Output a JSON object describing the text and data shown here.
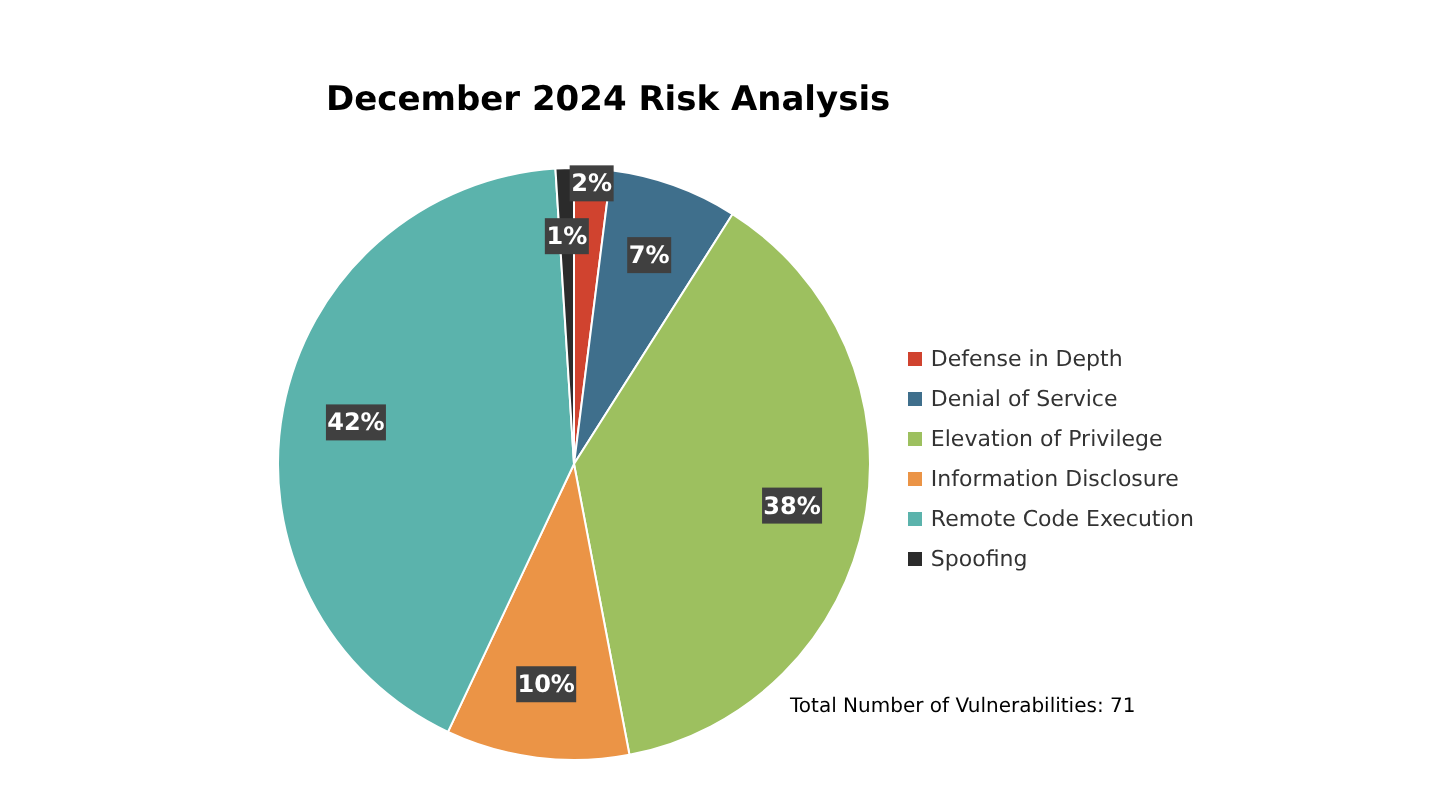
{
  "chart_data": {
    "type": "pie",
    "title": "December 2024 Risk Analysis",
    "categories": [
      "Defense in Depth",
      "Denial of Service",
      "Elevation of Privilege",
      "Information Disclosure",
      "Remote Code Execution",
      "Spoofing"
    ],
    "values": [
      2,
      7,
      38,
      10,
      42,
      1
    ],
    "colors": [
      "#d0432f",
      "#3f6f8c",
      "#9dc05f",
      "#eb9446",
      "#5bb3ac",
      "#2b2b2b"
    ],
    "legend": "right",
    "value_labels": [
      "2%",
      "7%",
      "38%",
      "10%",
      "42%",
      "1%"
    ],
    "annotations": [
      "Total Number of Vulnerabilities: 71"
    ]
  }
}
